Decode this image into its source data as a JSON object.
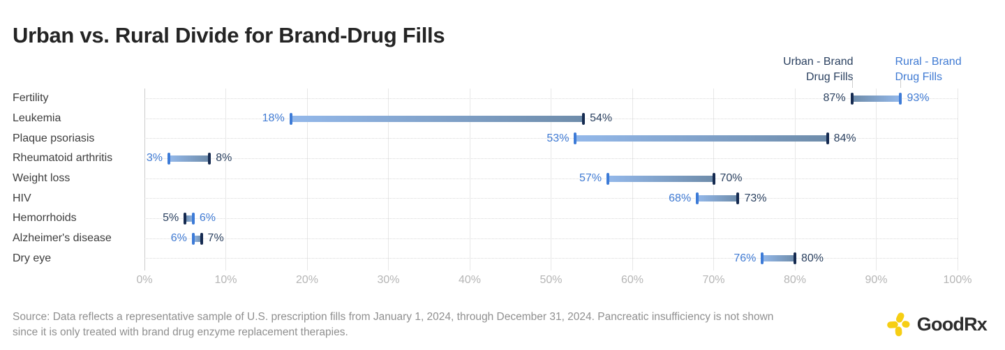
{
  "title": "Urban vs. Rural Divide for Brand-Drug Fills",
  "legend": {
    "urban_line1": "Urban - Brand",
    "urban_line2": "Drug Fills",
    "rural_line1": "Rural - Brand",
    "rural_line2": "Drug Fills"
  },
  "chart_data": {
    "type": "bar",
    "variant": "dumbbell_range",
    "title": "Urban vs. Rural Divide for Brand-Drug Fills",
    "categories": [
      "Fertility",
      "Leukemia",
      "Plaque psoriasis",
      "Rheumatoid arthritis",
      "Weight loss",
      "HIV",
      "Hemorrhoids",
      "Alzheimer's disease",
      "Dry eye"
    ],
    "series": [
      {
        "name": "Urban - Brand Drug Fills",
        "values": [
          87,
          54,
          84,
          8,
          70,
          73,
          5,
          7,
          80
        ]
      },
      {
        "name": "Rural - Brand Drug Fills",
        "values": [
          93,
          18,
          53,
          3,
          57,
          68,
          6,
          6,
          76
        ]
      }
    ],
    "value_suffix": "%",
    "xlabel": "",
    "ylabel": "",
    "xlim": [
      0,
      100
    ],
    "x_ticks": [
      "0%",
      "10%",
      "20%",
      "30%",
      "40%",
      "50%",
      "60%",
      "70%",
      "80%",
      "90%",
      "100%"
    ],
    "legend_position": "top-right",
    "grid": "vertical solid lines each 10%, dotted horizontal line per row"
  },
  "colors": {
    "urban_cap": "#152a50",
    "rural_cap": "#3d7bd7",
    "urban_label": "#2b4160",
    "rural_label": "#3f7ad3",
    "body_rural_end": "#93b8ea",
    "body_urban_end": "#6e8caa",
    "grid": "#e7e7e7",
    "grid_zero": "#cccccc",
    "row_dotted": "#d9d9d9",
    "axis_text": "#b5b5b5",
    "category_text": "#3d3d3d",
    "title_text": "#242424",
    "source_text": "#8f8f8f",
    "brand_yellow": "#f6ce14",
    "brand_text": "#2d2d2d"
  },
  "footer": {
    "source_lines": [
      "Source: Data reflects a representative sample of U.S. prescription fills from January 1, 2024, through December 31, 2024. Pancreatic insufficiency is not shown",
      "since it is only treated with brand drug enzyme replacement therapies."
    ],
    "brand": "GoodRx"
  }
}
